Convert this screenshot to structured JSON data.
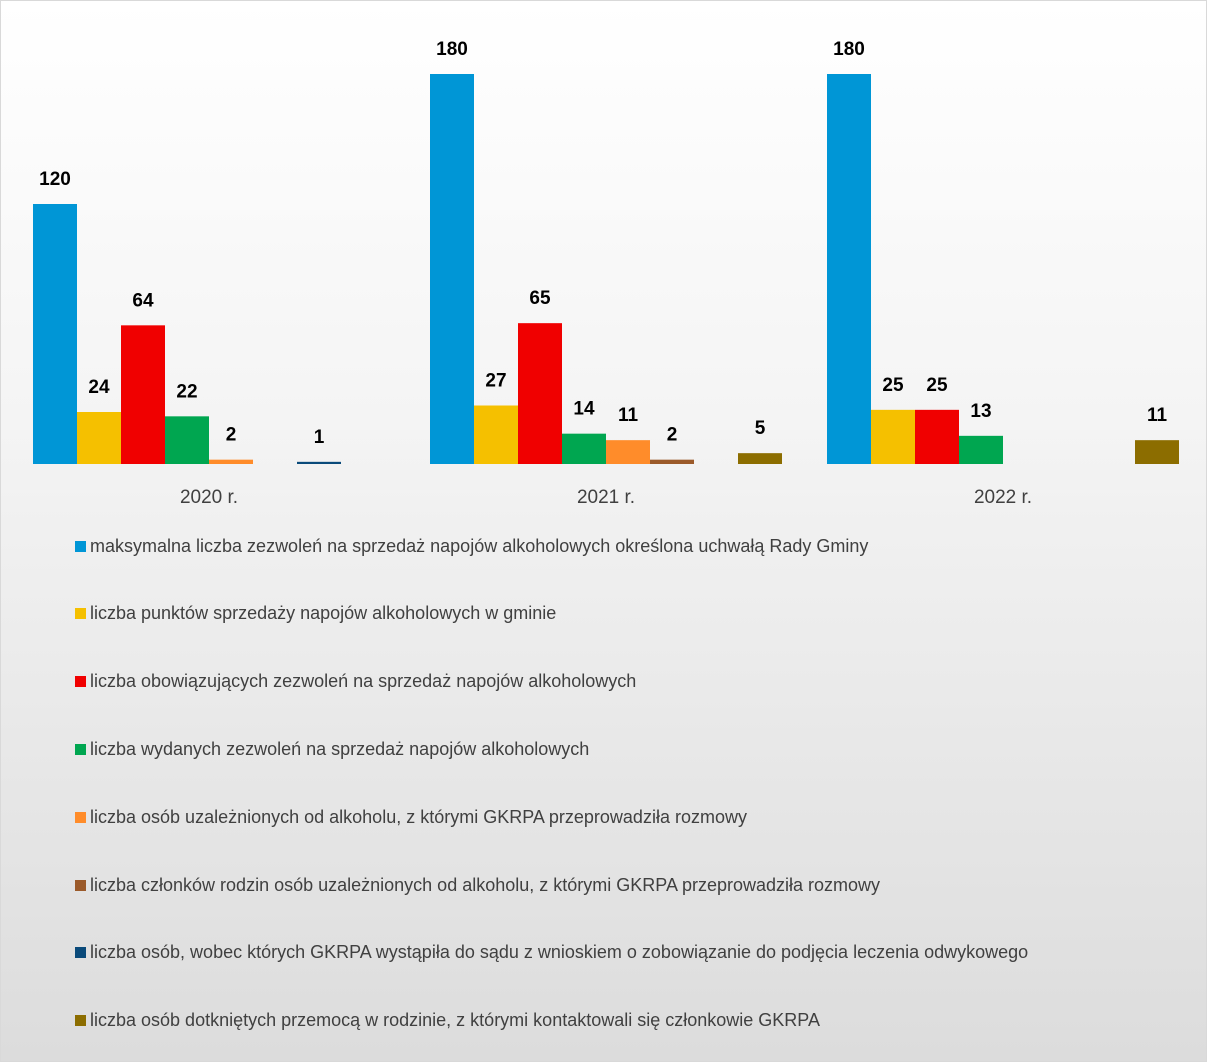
{
  "chart_data": {
    "type": "bar",
    "categories": [
      "2020 r.",
      "2021 r.",
      "2022 r."
    ],
    "series": [
      {
        "name": "maksymalna liczba zezwoleń na sprzedaż napojów alkoholowych określona uchwałą Rady Gminy",
        "color": "#0096d6",
        "values": [
          120,
          180,
          180
        ]
      },
      {
        "name": "liczba punktów sprzedaży napojów alkoholowych w gminie",
        "color": "#f5c000",
        "values": [
          24,
          27,
          25
        ]
      },
      {
        "name": "liczba obowiązujących zezwoleń na sprzedaż napojów alkoholowych",
        "color": "#f00000",
        "values": [
          64,
          65,
          25
        ]
      },
      {
        "name": "liczba wydanych zezwoleń na sprzedaż napojów alkoholowych",
        "color": "#00a650",
        "values": [
          22,
          14,
          13
        ]
      },
      {
        "name": "liczba osób uzależnionych od alkoholu, z którymi GKRPA przeprowadziła rozmowy",
        "color": "#ff8c2a",
        "values": [
          2,
          11,
          null
        ]
      },
      {
        "name": "liczba członków rodzin osób uzależnionych od alkoholu, z którymi GKRPA przeprowadziła rozmowy",
        "color": "#9b5a2a",
        "values": [
          null,
          2,
          null
        ]
      },
      {
        "name": "liczba osób, wobec których GKRPA wystąpiła do sądu z wnioskiem o zobowiązanie do podjęcia leczenia odwykowego",
        "color": "#0a4a7a",
        "values": [
          1,
          null,
          null
        ]
      },
      {
        "name": "liczba osób dotkniętych przemocą w rodzinie, z którymi kontaktowali się członkowie GKRPA",
        "color": "#8c6d00",
        "values": [
          null,
          5,
          11
        ]
      }
    ]
  }
}
